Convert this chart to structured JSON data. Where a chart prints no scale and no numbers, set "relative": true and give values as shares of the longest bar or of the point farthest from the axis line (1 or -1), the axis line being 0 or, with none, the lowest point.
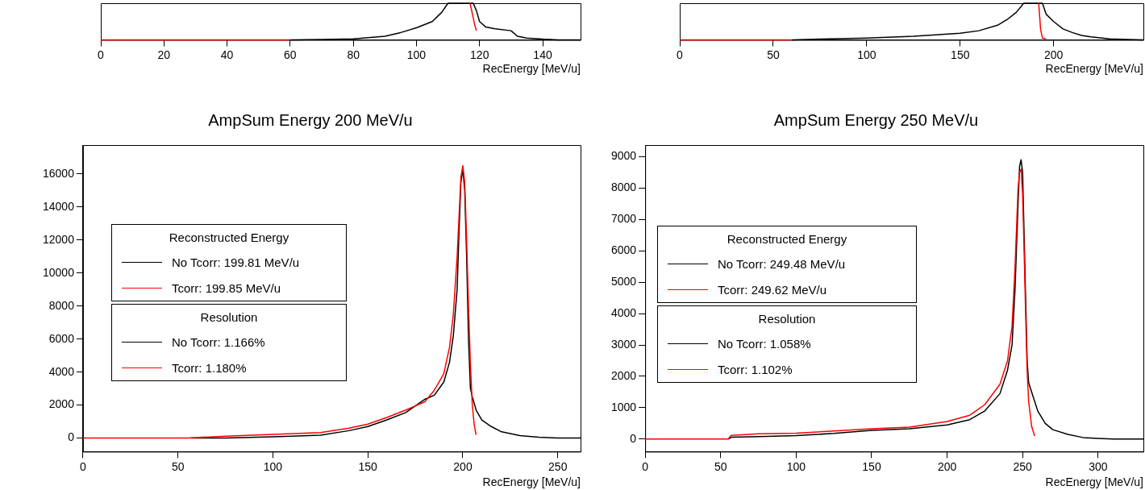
{
  "chart_data": [
    {
      "type": "line",
      "relative": true,
      "xlabel": "RecEnergy [MeV/u]",
      "xlim": [
        0,
        152
      ],
      "xticks": [
        0,
        20,
        40,
        60,
        80,
        100,
        120,
        140
      ],
      "marker": "none",
      "line_style": "solid",
      "grid": false,
      "legend": false,
      "series": [
        {
          "color": "#000000",
          "x": [
            60,
            70,
            80,
            90,
            95,
            100,
            105,
            108,
            110,
            118,
            119,
            120,
            122,
            125,
            130,
            132,
            135,
            140,
            145,
            152
          ],
          "values": [
            0,
            0.01,
            0.03,
            0.1,
            0.2,
            0.33,
            0.5,
            0.75,
            1,
            1,
            0.8,
            0.5,
            0.35,
            0.3,
            0.25,
            0.1,
            0.05,
            0.02,
            0,
            0
          ]
        },
        {
          "color": "#ff0000",
          "x": [
            0,
            60,
            116,
            117,
            118,
            118.5,
            119
          ],
          "values": [
            0,
            0,
            null,
            1,
            0.6,
            0.4,
            0.25
          ]
        }
      ]
    },
    {
      "type": "line",
      "relative": true,
      "xlabel": "RecEnergy [MeV/u]",
      "xlim": [
        0,
        248
      ],
      "xticks": [
        0,
        50,
        100,
        150,
        200
      ],
      "marker": "none",
      "line_style": "solid",
      "grid": false,
      "legend": false,
      "series": [
        {
          "color": "#000000",
          "x": [
            60,
            75,
            100,
            125,
            150,
            160,
            170,
            175,
            180,
            184,
            194,
            196,
            200,
            205,
            210,
            215,
            220,
            230,
            240,
            248
          ],
          "values": [
            0,
            0.02,
            0.05,
            0.1,
            0.18,
            0.25,
            0.4,
            0.55,
            0.75,
            1,
            1,
            0.7,
            0.5,
            0.3,
            0.2,
            0.12,
            0.08,
            0.03,
            0.01,
            0
          ]
        },
        {
          "color": "#ff0000",
          "x": [
            0,
            60,
            191,
            192,
            193,
            194,
            196
          ],
          "values": [
            0,
            0,
            null,
            1,
            0.3,
            0.05,
            0.03
          ]
        }
      ]
    },
    {
      "type": "line",
      "title": "AmpSum Energy 200 MeV/u",
      "xlabel": "RecEnergy [MeV/u]",
      "xlim": [
        0,
        262
      ],
      "xticks": [
        0,
        50,
        100,
        150,
        200,
        250
      ],
      "ylim": [
        -820,
        17750
      ],
      "yticks": [
        0,
        2000,
        4000,
        6000,
        8000,
        10000,
        12000,
        14000,
        16000
      ],
      "marker": "none",
      "line_style": "solid",
      "grid": false,
      "legend": "left",
      "legend_title": "Reconstructed Energy",
      "annotations": [
        "Resolution",
        "No Tcorr: 1.166%",
        "Tcorr: 1.180%"
      ],
      "series": [
        {
          "name": "No Tcorr: 199.81 MeV/u",
          "color": "#000000",
          "x": [
            57,
            75,
            100,
            125,
            140,
            150,
            160,
            170,
            180,
            185,
            190,
            193,
            195,
            197,
            198,
            199,
            200,
            201,
            202,
            203,
            204,
            205,
            207,
            210,
            215,
            220,
            230,
            240,
            250,
            262
          ],
          "values": [
            0,
            0,
            80,
            180,
            450,
            700,
            1100,
            1550,
            2350,
            2600,
            3400,
            4600,
            6200,
            9000,
            12500,
            15500,
            16300,
            15000,
            11000,
            6000,
            3000,
            2500,
            1700,
            1100,
            700,
            400,
            150,
            50,
            0,
            0
          ]
        },
        {
          "name": "Tcorr: 199.85 MeV/u",
          "color": "#ff0000",
          "x": [
            0,
            55,
            75,
            100,
            125,
            140,
            150,
            160,
            170,
            180,
            185,
            190,
            193,
            195,
            197,
            199,
            200,
            201,
            202,
            203,
            204,
            205,
            206,
            207
          ],
          "values": [
            0,
            0,
            120,
            230,
            330,
            600,
            850,
            1250,
            1700,
            2200,
            2900,
            3900,
            5500,
            7500,
            11000,
            15800,
            16500,
            15500,
            12000,
            8000,
            4500,
            2000,
            800,
            200
          ]
        }
      ]
    },
    {
      "type": "line",
      "title": "AmpSum Energy 250 MeV/u",
      "xlabel": "RecEnergy [MeV/u]",
      "xlim": [
        0,
        330
      ],
      "xticks": [
        0,
        50,
        100,
        150,
        200,
        250,
        300
      ],
      "ylim": [
        -400,
        9370
      ],
      "yticks": [
        0,
        1000,
        2000,
        3000,
        4000,
        5000,
        6000,
        7000,
        8000,
        9000
      ],
      "marker": "none",
      "line_style": "solid",
      "grid": false,
      "legend": "left",
      "legend_title": "Reconstructed Energy",
      "annotations": [
        "Resolution",
        "No Tcorr: 1.058%",
        "Tcorr: 1.102%"
      ],
      "series": [
        {
          "name": "No Tcorr: 249.48 MeV/u",
          "color": "#000000",
          "x": [
            55,
            57,
            75,
            100,
            125,
            150,
            175,
            200,
            215,
            225,
            235,
            240,
            243,
            245,
            247,
            248,
            249,
            250,
            251,
            252,
            253,
            254,
            256,
            260,
            265,
            270,
            280,
            290,
            300,
            310,
            330
          ],
          "values": [
            0,
            60,
            80,
            110,
            180,
            280,
            330,
            450,
            620,
            900,
            1450,
            2200,
            3000,
            4800,
            7500,
            8700,
            8900,
            8500,
            6500,
            4500,
            2500,
            1800,
            1500,
            900,
            500,
            300,
            150,
            50,
            20,
            0,
            0
          ]
        },
        {
          "name": "Tcorr: 249.62 MeV/u",
          "color": "#ff0000",
          "x": [
            0,
            55,
            57,
            75,
            100,
            125,
            150,
            175,
            200,
            215,
            225,
            235,
            240,
            243,
            245,
            247,
            248,
            249,
            250,
            251,
            252,
            253,
            254,
            256,
            258
          ],
          "values": [
            0,
            0,
            120,
            170,
            190,
            260,
            330,
            380,
            560,
            760,
            1100,
            1750,
            2500,
            3600,
            5500,
            8000,
            8500,
            8600,
            7800,
            6000,
            4000,
            2200,
            1200,
            400,
            100
          ]
        }
      ]
    }
  ]
}
